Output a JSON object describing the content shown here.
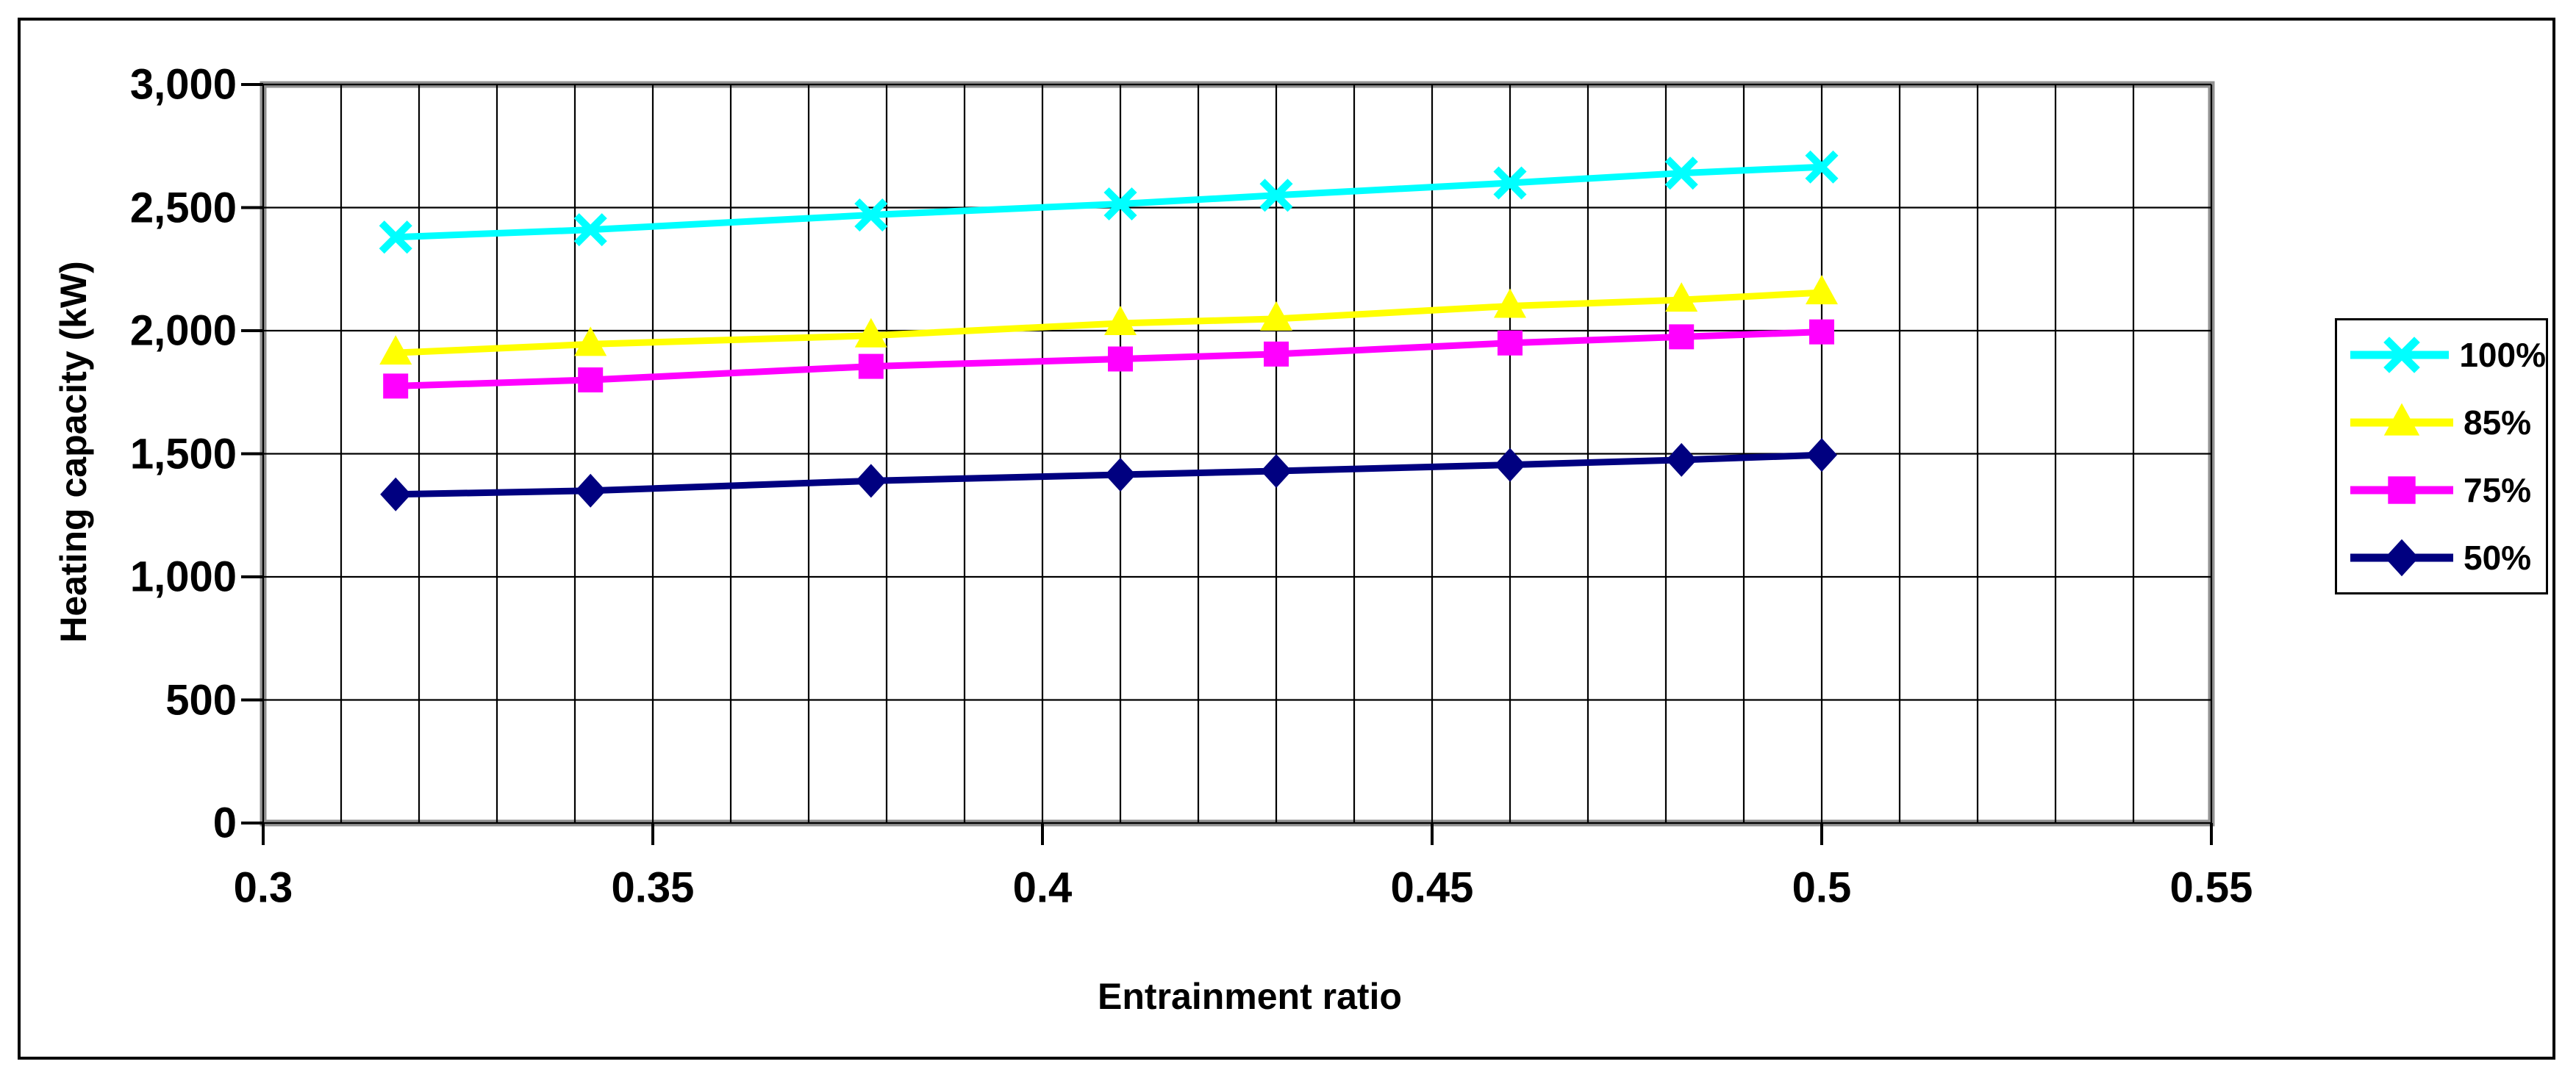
{
  "chart_data": {
    "type": "line",
    "title": "",
    "xlabel": "Entrainment ratio",
    "ylabel": "Heating capacity (kW)",
    "xlim": [
      0.3,
      0.55
    ],
    "ylim": [
      0,
      3000
    ],
    "x_major_ticks": [
      0.3,
      0.35,
      0.4,
      0.45,
      0.5,
      0.55
    ],
    "x_tick_labels": [
      "0.3",
      "0.35",
      "0.4",
      "0.45",
      "0.5",
      "0.55"
    ],
    "x_minor_grid_interval": 0.01,
    "y_major_ticks": [
      0,
      500,
      1000,
      1500,
      2000,
      2500,
      3000
    ],
    "y_tick_labels": [
      "0",
      "500",
      "1,000",
      "1,500",
      "2,000",
      "2,500",
      "3,000"
    ],
    "grid": {
      "vertical_minor": true,
      "horizontal_major": true
    },
    "legend_position": "right",
    "axis_color": "#919191",
    "gridline_color": "#000000",
    "x": [
      0.317,
      0.342,
      0.378,
      0.41,
      0.43,
      0.46,
      0.482,
      0.5
    ],
    "series": [
      {
        "name": "100%",
        "color": "#00FFFF",
        "marker": "x-cross",
        "values": [
          2380,
          2410,
          2470,
          2515,
          2550,
          2600,
          2640,
          2665
        ]
      },
      {
        "name": "85%",
        "color": "#FFFF00",
        "marker": "triangle-up",
        "values": [
          1910,
          1945,
          1980,
          2030,
          2048,
          2100,
          2125,
          2155
        ]
      },
      {
        "name": "75%",
        "color": "#FF00FF",
        "marker": "square",
        "values": [
          1775,
          1800,
          1855,
          1885,
          1905,
          1950,
          1975,
          1995
        ]
      },
      {
        "name": "50%",
        "color": "#000080",
        "marker": "diamond",
        "values": [
          1335,
          1350,
          1390,
          1415,
          1430,
          1455,
          1475,
          1495
        ]
      }
    ]
  }
}
